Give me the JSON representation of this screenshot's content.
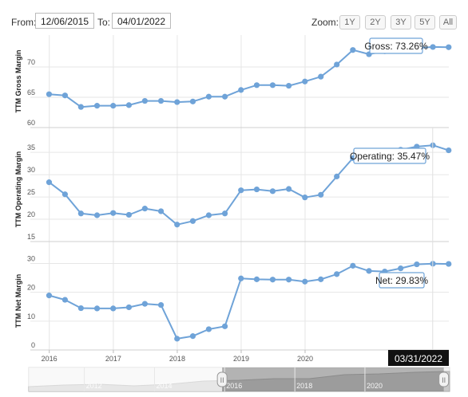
{
  "toolbar": {
    "from_label": "From:",
    "from_value": "12/06/2015",
    "to_label": "To:",
    "to_value": "04/01/2022",
    "zoom_label": "Zoom:",
    "zoom_buttons": [
      "1Y",
      "2Y",
      "3Y",
      "5Y",
      "All"
    ]
  },
  "colors": {
    "series": "#6fa3d8",
    "marker": "#6fa3d8",
    "grid": "#e6e6e6",
    "tooltip_bg": "#111111"
  },
  "chart_data": [
    {
      "type": "line",
      "ylabel": "TTM Gross Margin",
      "ylim": [
        60,
        75
      ],
      "yticks": [
        60,
        65,
        70
      ],
      "tooltip": "Gross: 73.26%",
      "x": [
        "2015-12-31",
        "2016-03-31",
        "2016-06-30",
        "2016-09-30",
        "2016-12-31",
        "2017-03-31",
        "2017-06-30",
        "2017-09-30",
        "2017-12-31",
        "2018-03-31",
        "2018-06-30",
        "2018-09-30",
        "2018-12-31",
        "2019-03-31",
        "2019-06-30",
        "2019-09-30",
        "2019-12-31",
        "2020-03-31",
        "2020-06-30",
        "2020-09-30",
        "2020-12-31",
        "2021-03-31",
        "2021-06-30",
        "2021-09-30",
        "2021-12-31",
        "2022-03-31"
      ],
      "values": [
        65.5,
        65.3,
        63.4,
        63.6,
        63.6,
        63.7,
        64.4,
        64.4,
        64.2,
        64.3,
        65.1,
        65.1,
        66.2,
        67.0,
        67.0,
        66.9,
        67.6,
        68.4,
        70.4,
        72.8,
        72.1,
        72.6,
        73.0,
        73.1,
        73.3,
        73.26
      ]
    },
    {
      "type": "line",
      "ylabel": "TTM Operating Margin",
      "ylim": [
        15,
        37
      ],
      "yticks": [
        15,
        20,
        25,
        30,
        35
      ],
      "tooltip": "Operating: 35.47%",
      "x": [
        "2015-12-31",
        "2016-03-31",
        "2016-06-30",
        "2016-09-30",
        "2016-12-31",
        "2017-03-31",
        "2017-06-30",
        "2017-09-30",
        "2017-12-31",
        "2018-03-31",
        "2018-06-30",
        "2018-09-30",
        "2018-12-31",
        "2019-03-31",
        "2019-06-30",
        "2019-09-30",
        "2019-12-31",
        "2020-03-31",
        "2020-06-30",
        "2020-09-30",
        "2020-12-31",
        "2021-03-31",
        "2021-06-30",
        "2021-09-30",
        "2021-12-31",
        "2022-03-31"
      ],
      "values": [
        28.3,
        25.6,
        21.3,
        20.9,
        21.4,
        21.0,
        22.4,
        21.8,
        18.8,
        19.6,
        20.9,
        21.3,
        26.5,
        26.7,
        26.3,
        26.8,
        24.9,
        25.5,
        29.6,
        33.7,
        33.3,
        34.6,
        35.6,
        36.3,
        36.6,
        35.47
      ]
    },
    {
      "type": "line",
      "ylabel": "TTM Net Margin",
      "ylim": [
        0,
        34
      ],
      "yticks": [
        0,
        10,
        20,
        30
      ],
      "tooltip": "Net: 29.83%",
      "x": [
        "2015-12-31",
        "2016-03-31",
        "2016-06-30",
        "2016-09-30",
        "2016-12-31",
        "2017-03-31",
        "2017-06-30",
        "2017-09-30",
        "2017-12-31",
        "2018-03-31",
        "2018-06-30",
        "2018-09-30",
        "2018-12-31",
        "2019-03-31",
        "2019-06-30",
        "2019-09-30",
        "2019-12-31",
        "2020-03-31",
        "2020-06-30",
        "2020-09-30",
        "2020-12-31",
        "2021-03-31",
        "2021-06-30",
        "2021-09-30",
        "2021-12-31",
        "2022-03-31"
      ],
      "values": [
        18.9,
        17.4,
        14.5,
        14.4,
        14.4,
        14.8,
        16.0,
        15.6,
        3.9,
        4.8,
        7.2,
        8.2,
        24.8,
        24.5,
        24.4,
        24.4,
        23.7,
        24.5,
        26.3,
        29.2,
        27.4,
        27.2,
        28.3,
        29.7,
        29.9,
        29.83
      ]
    }
  ],
  "x_axis": {
    "ticks": [
      {
        "label": "2016",
        "date": "2016-01-01"
      },
      {
        "label": "2017",
        "date": "2017-01-01"
      },
      {
        "label": "2018",
        "date": "2018-01-01"
      },
      {
        "label": "2019",
        "date": "2019-01-01"
      },
      {
        "label": "2020",
        "date": "2020-01-01"
      }
    ],
    "range": [
      "2015-09-15",
      "2022-04-01"
    ],
    "highlight_label": "03/31/2022"
  },
  "navigator": {
    "range": [
      "2010-06-01",
      "2022-06-01"
    ],
    "ticks": [
      {
        "label": "2012",
        "date": "2012-01-01"
      },
      {
        "label": "2014",
        "date": "2014-01-01"
      },
      {
        "label": "2016",
        "date": "2016-01-01"
      },
      {
        "label": "2018",
        "date": "2018-01-01"
      },
      {
        "label": "2020",
        "date": "2020-01-01"
      }
    ],
    "selection": [
      "2015-12-06",
      "2022-04-01"
    ],
    "history": [
      [
        "2010-06-01",
        6
      ],
      [
        "2011-06-01",
        8
      ],
      [
        "2012-06-01",
        9
      ],
      [
        "2013-06-01",
        7
      ],
      [
        "2014-06-01",
        9
      ],
      [
        "2015-06-01",
        13
      ],
      [
        "2016-06-01",
        14
      ],
      [
        "2017-06-01",
        16
      ],
      [
        "2018-06-01",
        16
      ],
      [
        "2019-06-01",
        21
      ],
      [
        "2020-06-01",
        22
      ],
      [
        "2021-06-01",
        24
      ],
      [
        "2022-03-31",
        25
      ],
      [
        "2022-06-01",
        25
      ]
    ],
    "handle_glyph": "II"
  }
}
